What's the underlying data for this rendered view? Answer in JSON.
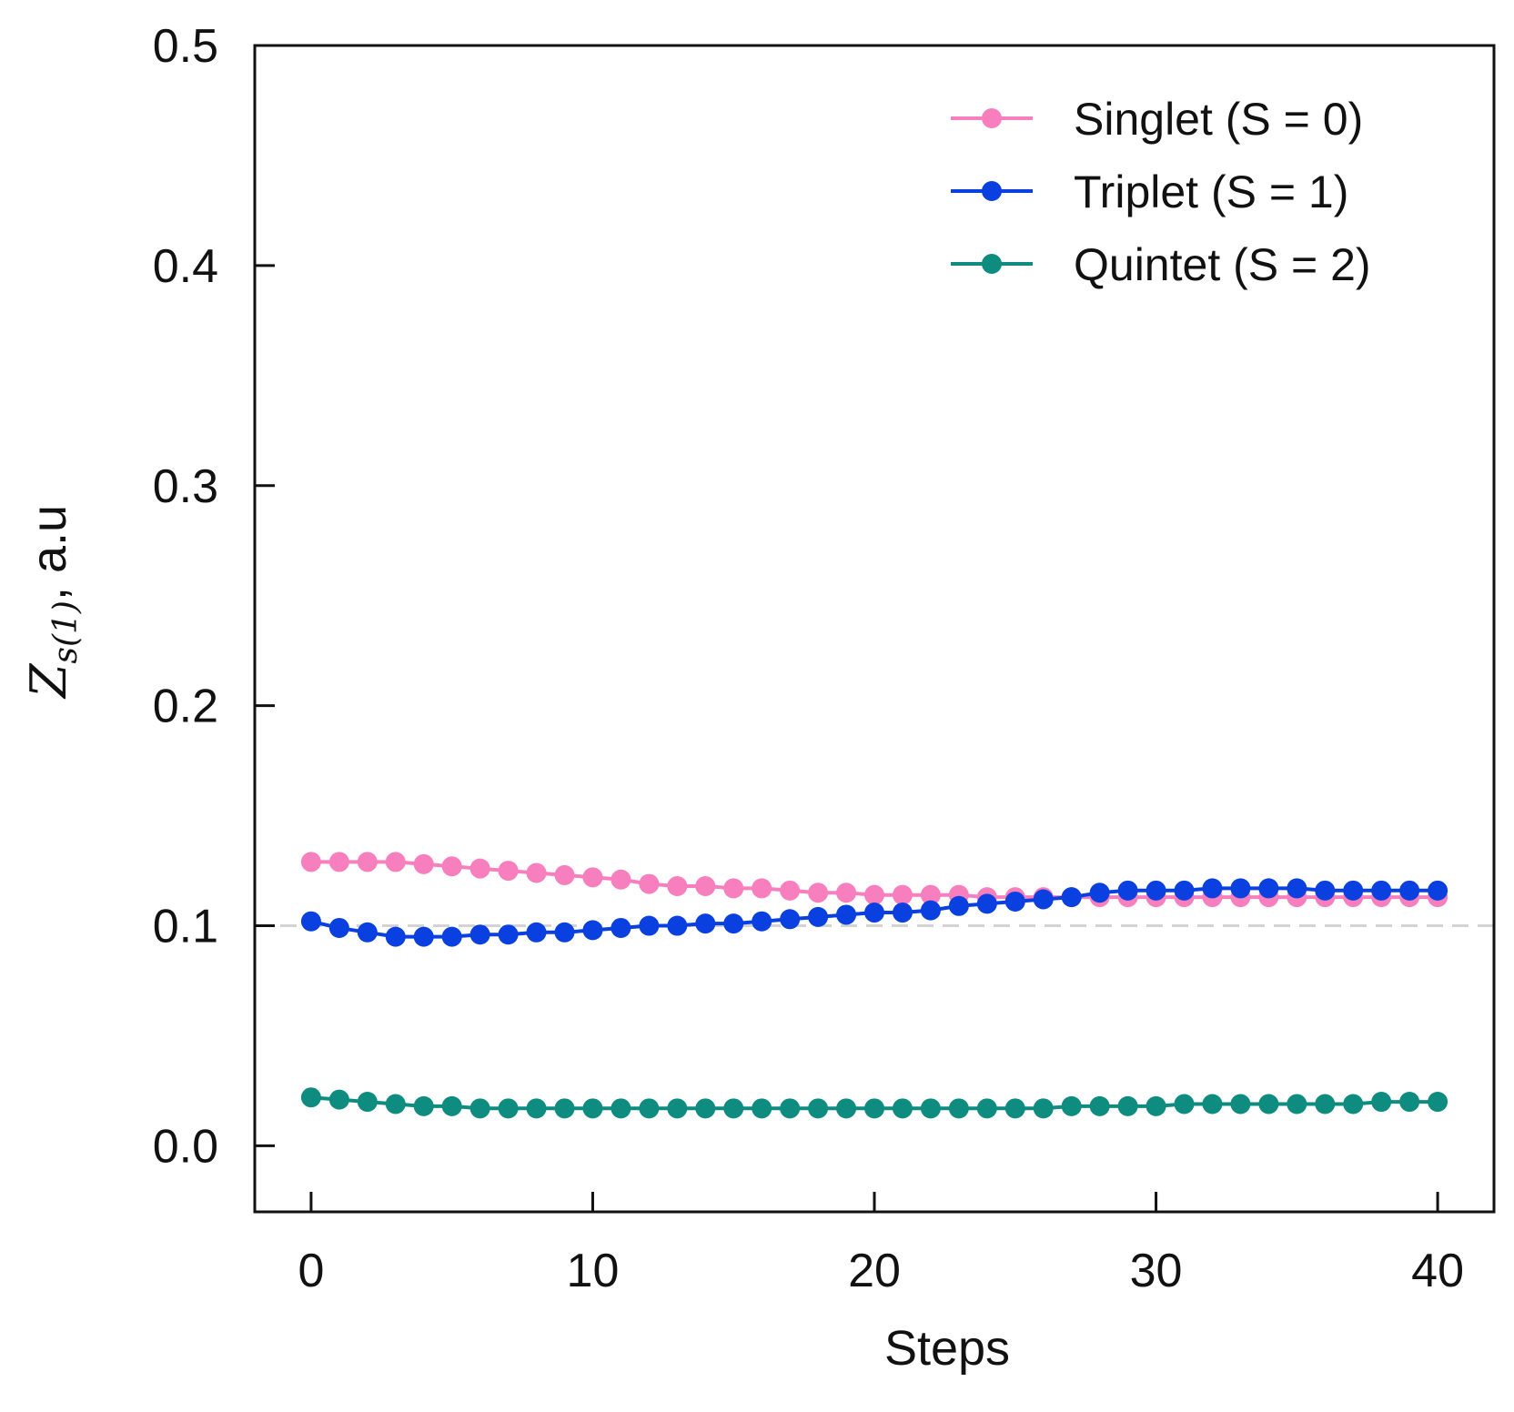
{
  "chart_data": {
    "type": "line",
    "xlabel": "Steps",
    "ylabel": {
      "symbol": "Z",
      "subscript": "s(1)",
      "suffix": ", a.u"
    },
    "xlim": [
      -2,
      42
    ],
    "ylim": [
      -0.03,
      0.5
    ],
    "x_ticks": [
      0,
      10,
      20,
      30,
      40
    ],
    "x_tick_labels": [
      "0",
      "10",
      "20",
      "30",
      "40"
    ],
    "y_ticks": [
      0.0,
      0.1,
      0.2,
      0.3,
      0.4,
      0.5
    ],
    "y_tick_labels": [
      "0.0",
      "0.1",
      "0.2",
      "0.3",
      "0.4",
      "0.5"
    ],
    "reference_line": {
      "y": 0.1,
      "style": "dashed",
      "color": "#d3d3d3"
    },
    "legend_position": "top-right",
    "x": [
      0,
      1,
      2,
      3,
      4,
      5,
      6,
      7,
      8,
      9,
      10,
      11,
      12,
      13,
      14,
      15,
      16,
      17,
      18,
      19,
      20,
      21,
      22,
      23,
      24,
      25,
      26,
      27,
      28,
      29,
      30,
      31,
      32,
      33,
      34,
      35,
      36,
      37,
      38,
      39,
      40
    ],
    "series": [
      {
        "name": "Singlet  (S = 0)",
        "color": "#f77fbe",
        "values": [
          0.129,
          0.129,
          0.129,
          0.129,
          0.128,
          0.127,
          0.126,
          0.125,
          0.124,
          0.123,
          0.122,
          0.121,
          0.119,
          0.118,
          0.118,
          0.117,
          0.117,
          0.116,
          0.115,
          0.115,
          0.114,
          0.114,
          0.114,
          0.114,
          0.113,
          0.113,
          0.113,
          0.113,
          0.113,
          0.113,
          0.113,
          0.113,
          0.113,
          0.113,
          0.113,
          0.113,
          0.113,
          0.113,
          0.113,
          0.113,
          0.113
        ]
      },
      {
        "name": "Triplet   (S = 1)",
        "color": "#0a3fe0",
        "values": [
          0.102,
          0.099,
          0.097,
          0.095,
          0.095,
          0.095,
          0.096,
          0.096,
          0.097,
          0.097,
          0.098,
          0.099,
          0.1,
          0.1,
          0.101,
          0.101,
          0.102,
          0.103,
          0.104,
          0.105,
          0.106,
          0.106,
          0.107,
          0.109,
          0.11,
          0.111,
          0.112,
          0.113,
          0.115,
          0.116,
          0.116,
          0.116,
          0.117,
          0.117,
          0.117,
          0.117,
          0.116,
          0.116,
          0.116,
          0.116,
          0.116
        ]
      },
      {
        "name": "Quintet (S = 2)",
        "color": "#0e8c80",
        "values": [
          0.022,
          0.021,
          0.02,
          0.019,
          0.018,
          0.018,
          0.017,
          0.017,
          0.017,
          0.017,
          0.017,
          0.017,
          0.017,
          0.017,
          0.017,
          0.017,
          0.017,
          0.017,
          0.017,
          0.017,
          0.017,
          0.017,
          0.017,
          0.017,
          0.017,
          0.017,
          0.017,
          0.018,
          0.018,
          0.018,
          0.018,
          0.019,
          0.019,
          0.019,
          0.019,
          0.019,
          0.019,
          0.019,
          0.02,
          0.02,
          0.02
        ]
      }
    ]
  }
}
